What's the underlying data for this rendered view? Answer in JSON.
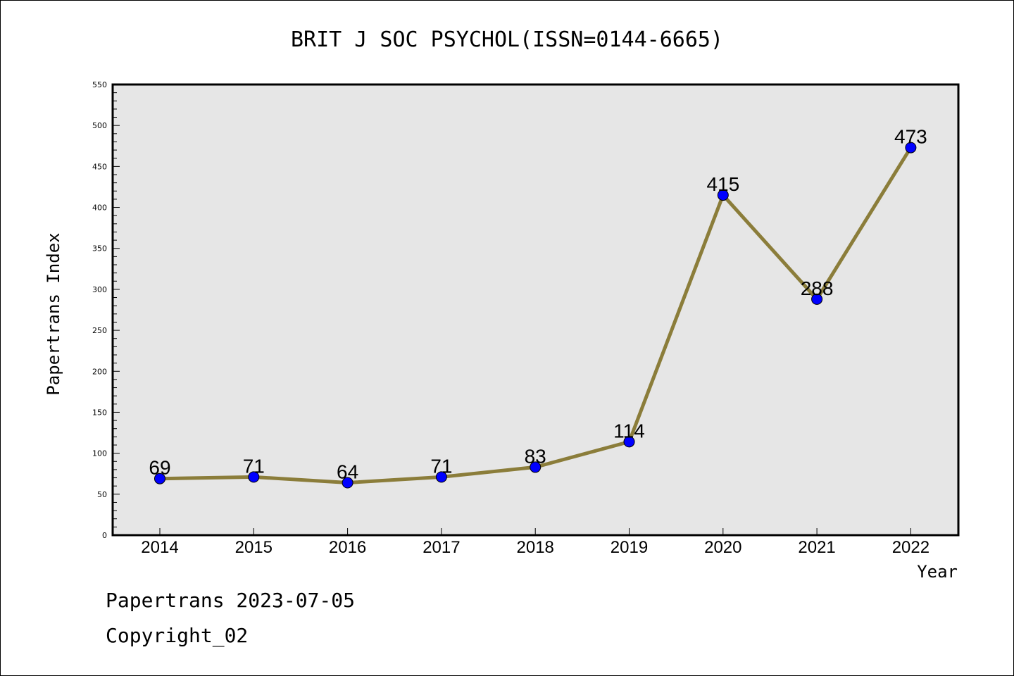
{
  "chart_data": {
    "type": "line",
    "title": "BRIT J SOC PSYCHOL(ISSN=0144-6665)",
    "xlabel": "Year",
    "ylabel": "Papertrans Index",
    "x": [
      "2014",
      "2015",
      "2016",
      "2017",
      "2018",
      "2019",
      "2020",
      "2021",
      "2022"
    ],
    "series": [
      {
        "values": [
          69,
          71,
          64,
          71,
          83,
          114,
          415,
          288,
          473
        ],
        "line_color": "#8b7d3a",
        "marker_color": "#0000ff"
      }
    ],
    "data_labels": [
      "69",
      "71",
      "64",
      "71",
      "83",
      "114",
      "415",
      "288",
      "473"
    ],
    "ylim": [
      0,
      550
    ],
    "y_ticks": [
      0,
      50,
      100,
      150,
      200,
      250,
      300,
      350,
      400,
      450,
      500,
      550
    ],
    "y_minor_step": 10,
    "grid": false,
    "plot_background": "#e6e6e6"
  },
  "footer": {
    "line1": "Papertrans 2023-07-05",
    "line2": "Copyright_02"
  }
}
